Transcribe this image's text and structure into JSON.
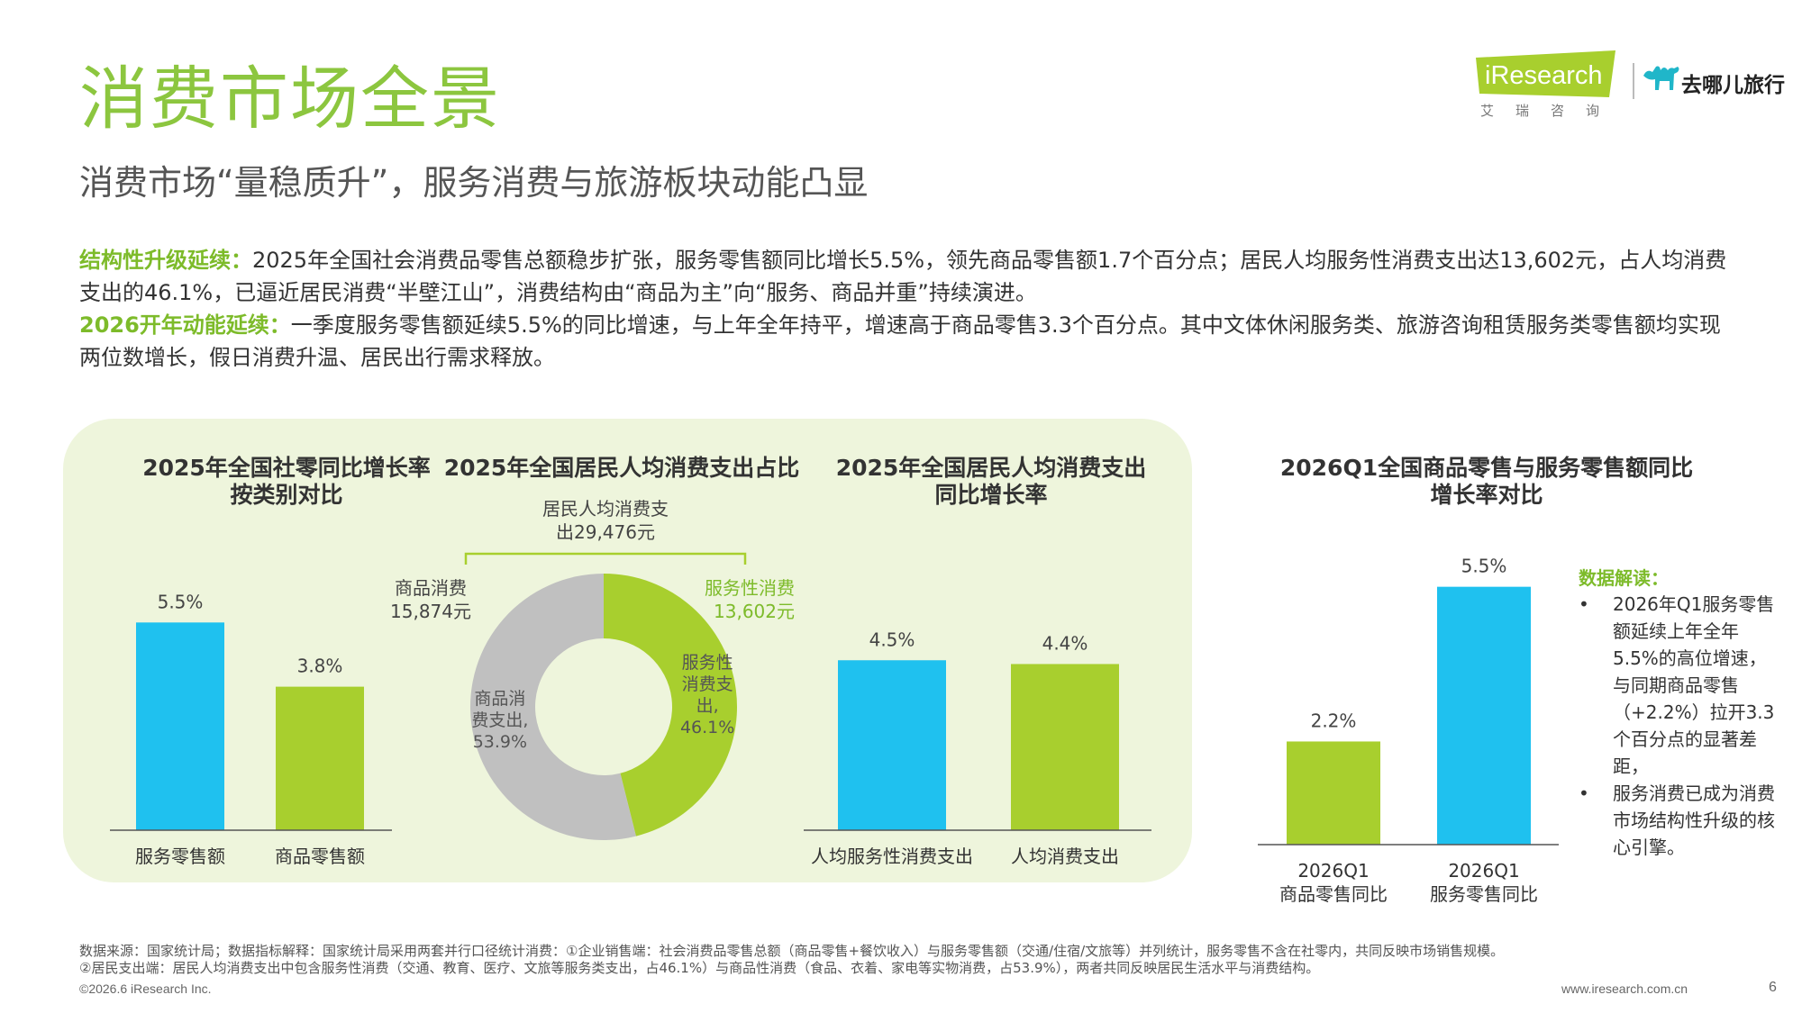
{
  "header": {
    "title": "消费市场全景",
    "subtitle": "消费市场“量稳质升”，服务消费与旅游板块动能凸显"
  },
  "logos": {
    "iresearch": "iResearch",
    "iresearch_cn": "艾瑞咨询",
    "qunar": "去哪儿旅行",
    "qunar_icon": "camel-icon"
  },
  "intro": {
    "p1_label": "结构性升级延续：",
    "p1_text": "2025年全国社会消费品零售总额稳步扩张，服务零售额同比增长5.5%，领先商品零售额1.7个百分点；居民人均服务性消费支出达13,602元，占人均消费支出的46.1%，已逼近居民消费“半壁江山”，消费结构由“商品为主”向“服务、商品并重”持续演进。",
    "p2_label": "2026开年动能延续：",
    "p2_text": "一季度服务零售额延续5.5%的同比增速，与上年全年持平，增速高于商品零售3.3个百分点。其中文体休闲服务类、旅游咨询租赁服务类零售额均实现两位数增长，假日消费升温、居民出行需求释放。"
  },
  "colors": {
    "brand_green": "#8cc63f",
    "bar_blue": "#1fc1ef",
    "bar_green": "#a8cf2e",
    "donut_grey": "#c0c0c0",
    "panel_bg": "#eef5dc"
  },
  "chart_data": [
    {
      "type": "bar",
      "title": "2025年全国社零同比增长率按类别对比",
      "title_lines": [
        "2025年全国社零同比增长率",
        "按类别对比"
      ],
      "categories": [
        "服务零售额",
        "商品零售额"
      ],
      "values": [
        5.5,
        3.8
      ],
      "data_labels": [
        "5.5%",
        "3.8%"
      ],
      "colors": [
        "#1fc1ef",
        "#a8cf2e"
      ],
      "ylim": [
        0,
        7.2
      ],
      "grid": false
    },
    {
      "type": "pie",
      "title": "2025年全国居民人均消费支出占比",
      "total_label": "居民人均消费支出29,476元",
      "total_label_lines": [
        "居民人均消费支",
        "出29,476元"
      ],
      "slices": [
        {
          "label": "服务性消费支出",
          "value": 46.1,
          "percent_label": "46.1%",
          "amount_label_lines": [
            "服务性消费",
            "13,602元"
          ],
          "inner_label_lines": [
            "服务性",
            "消费支",
            "出,",
            "46.1%"
          ],
          "color": "#a8cf2e"
        },
        {
          "label": "商品消费支出",
          "value": 53.9,
          "percent_label": "53.9%",
          "amount_label_lines": [
            "商品消费",
            "15,874元"
          ],
          "inner_label_lines": [
            "商品消",
            "费支出,",
            "53.9%"
          ],
          "color": "#c0c0c0"
        }
      ]
    },
    {
      "type": "bar",
      "title": "2025年全国居民人均消费支出同比增长率",
      "title_lines": [
        "2025年全国居民人均消费支出",
        "同比增长率"
      ],
      "categories": [
        "人均服务性消费支出",
        "人均消费支出"
      ],
      "values": [
        4.5,
        4.4
      ],
      "data_labels": [
        "4.5%",
        "4.4%"
      ],
      "colors": [
        "#1fc1ef",
        "#a8cf2e"
      ],
      "ylim": [
        0,
        7.2
      ],
      "grid": false
    },
    {
      "type": "bar",
      "title": "2026Q1全国商品零售与服务零售额同比增长率对比",
      "title_lines": [
        "2026Q1全国商品零售与服务零售额同比",
        "增长率对比"
      ],
      "categories": [
        "2026Q1 商品零售同比",
        "2026Q1 服务零售同比"
      ],
      "category_lines": [
        [
          "2026Q1",
          "商品零售同比"
        ],
        [
          "2026Q1",
          "服务零售同比"
        ]
      ],
      "values": [
        2.2,
        5.5
      ],
      "data_labels": [
        "2.2%",
        "5.5%"
      ],
      "colors": [
        "#a8cf2e",
        "#1fc1ef"
      ],
      "ylim": [
        0,
        6.3
      ],
      "grid": false
    }
  ],
  "insight": {
    "heading": "数据解读：",
    "items": [
      "2026年Q1服务零售额延续上年全年5.5%的高位增速，与同期商品零售（+2.2%）拉开3.3个百分点的显著差距，",
      "服务消费已成为消费市场结构性升级的核心引擎。"
    ]
  },
  "footer": {
    "source_note": "数据来源：国家统计局；数据指标解释：国家统计局采用两套并行口径统计消费：①企业销售端：社会消费品零售总额（商品零售+餐饮收入）与服务零售额（交通/住宿/文旅等）并列统计，服务零售不含在社零内，共同反映市场销售规模。",
    "source_note2": "②居民支出端：居民人均消费支出中包含服务性消费（交通、教育、医疗、文旅等服务类支出，占46.1%）与商品性消费（食品、衣着、家电等实物消费，占53.9%），两者共同反映居民生活水平与消费结构。",
    "copyright": "©2026.6 iResearch Inc.",
    "url": "www.iresearch.com.cn",
    "page": "6"
  }
}
